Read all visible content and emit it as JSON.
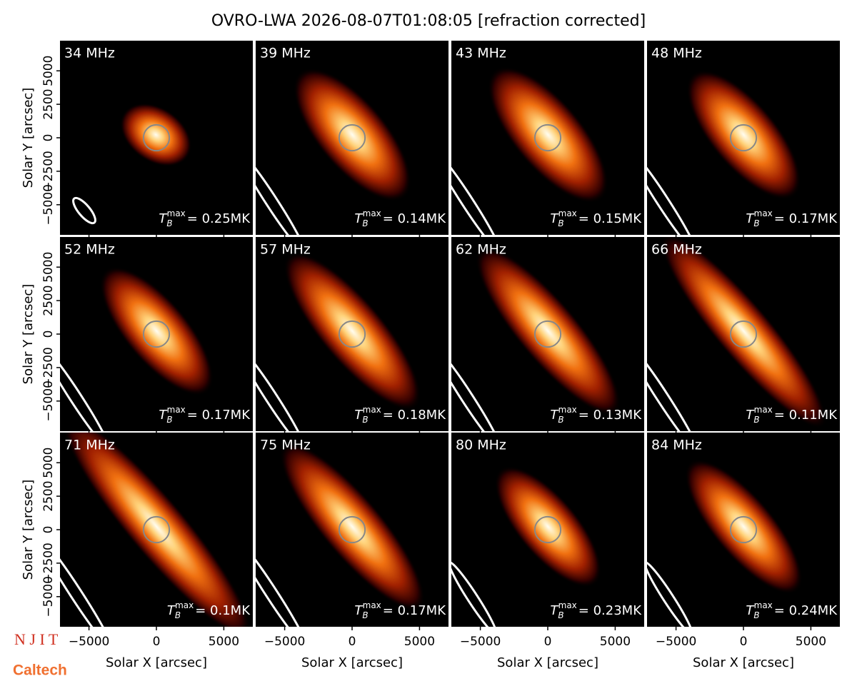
{
  "title": "OVRO-LWA 2026-08-07T01:08:05 [refraction corrected]",
  "logos": [
    "N J I T",
    "Caltech"
  ],
  "axes": {
    "xlabel": "Solar X [arcsec]",
    "ylabel": "Solar Y [arcsec]",
    "xlim": [
      -7150,
      7150
    ],
    "ylim": [
      -7250,
      7250
    ],
    "xticks": [
      {
        "value": -5000,
        "label": "−5000"
      },
      0,
      5000
    ],
    "yticks": [
      {
        "value": -5000,
        "label": "−5000"
      },
      {
        "value": -2500,
        "label": "−2500"
      },
      0,
      2500,
      5000
    ]
  },
  "tb_symbol": {
    "symbol": "T",
    "sub": "B",
    "sup": "max"
  },
  "chart_data": [
    {
      "type": "image",
      "title": "34 MHz",
      "annotation": "= 0.25MK"
    },
    {
      "type": "image",
      "title": "39 MHz",
      "annotation": "= 0.14MK"
    },
    {
      "type": "image",
      "title": "43 MHz",
      "annotation": "= 0.15MK"
    },
    {
      "type": "image",
      "title": "48 MHz",
      "annotation": "= 0.17MK"
    },
    {
      "type": "image",
      "title": "52 MHz",
      "annotation": "= 0.17MK"
    },
    {
      "type": "image",
      "title": "57 MHz",
      "annotation": "= 0.18MK"
    },
    {
      "type": "image",
      "title": "62 MHz",
      "annotation": "= 0.13MK"
    },
    {
      "type": "image",
      "title": "66 MHz",
      "annotation": "= 0.11MK"
    },
    {
      "type": "image",
      "title": "71 MHz",
      "annotation": "= 0.1MK"
    },
    {
      "type": "image",
      "title": "75 MHz",
      "annotation": "= 0.17MK"
    },
    {
      "type": "image",
      "title": "80 MHz",
      "annotation": "= 0.23MK"
    },
    {
      "type": "image",
      "title": "84 MHz",
      "annotation": "= 0.24MK"
    }
  ]
}
